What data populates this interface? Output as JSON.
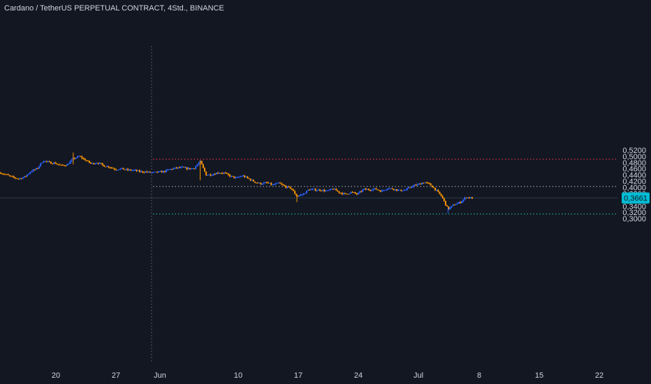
{
  "header": {
    "title": "Cardano / TetherUS PERPETUAL CONTRACT, 4Std., BINANCE"
  },
  "price_axis": {
    "ticks": [
      "0,5200",
      "0,5000",
      "0,4800",
      "0,4600",
      "0,4400",
      "0,4200",
      "0,4000",
      "0,3800",
      "0,3600",
      "0,3400",
      "0,3200",
      "0,3000"
    ],
    "current_price_label": "0,3661"
  },
  "time_axis": {
    "ticks": [
      "20",
      "27",
      "Jun",
      "10",
      "17",
      "24",
      "Jul",
      "8",
      "15",
      "22"
    ]
  },
  "colors": {
    "background": "#131722",
    "up_candle": "#2962ff",
    "down_candle": "#ff9800",
    "red_level": "#f23645",
    "grey_level": "#9598a1",
    "green_level": "#22ab94",
    "price_badge": "#00bcd4",
    "axis_text": "#d1d4dc"
  },
  "chart_data": {
    "type": "candlestick",
    "title": "Cardano / TetherUS PERPETUAL CONTRACT, 4Std., BINANCE",
    "y_range": [
      0.295,
      0.521
    ],
    "current_price": 0.3661,
    "horizontal_levels": [
      {
        "price": 0.4905,
        "style": "dotted",
        "color": "red"
      },
      {
        "price": 0.403,
        "style": "dotted",
        "color": "grey"
      },
      {
        "price": 0.315,
        "style": "dotted",
        "color": "green"
      }
    ],
    "vertical_marker": {
      "date": "Jun",
      "style": "dotted"
    },
    "close_path": [
      [
        0,
        0.447
      ],
      [
        1,
        0.44
      ],
      [
        2,
        0.432
      ],
      [
        3,
        0.428
      ],
      [
        4,
        0.434
      ],
      [
        5,
        0.452
      ],
      [
        6,
        0.46
      ],
      [
        7,
        0.486
      ],
      [
        8,
        0.48
      ],
      [
        9,
        0.478
      ],
      [
        10,
        0.47
      ],
      [
        11,
        0.473
      ],
      [
        12,
        0.492
      ],
      [
        13,
        0.5
      ],
      [
        14,
        0.488
      ],
      [
        15,
        0.476
      ],
      [
        16,
        0.48
      ],
      [
        17,
        0.47
      ],
      [
        18,
        0.466
      ],
      [
        19,
        0.458
      ],
      [
        20,
        0.46
      ],
      [
        21,
        0.456
      ],
      [
        22,
        0.455
      ],
      [
        23,
        0.451
      ],
      [
        24,
        0.45
      ],
      [
        25,
        0.447
      ],
      [
        26,
        0.449
      ],
      [
        27,
        0.451
      ],
      [
        28,
        0.458
      ],
      [
        29,
        0.462
      ],
      [
        30,
        0.464
      ],
      [
        31,
        0.46
      ],
      [
        32,
        0.462
      ],
      [
        33,
        0.483
      ],
      [
        34,
        0.44
      ],
      [
        35,
        0.442
      ],
      [
        36,
        0.448
      ],
      [
        37,
        0.446
      ],
      [
        38,
        0.436
      ],
      [
        39,
        0.43
      ],
      [
        40,
        0.438
      ],
      [
        41,
        0.428
      ],
      [
        42,
        0.418
      ],
      [
        43,
        0.412
      ],
      [
        44,
        0.415
      ],
      [
        45,
        0.408
      ],
      [
        46,
        0.414
      ],
      [
        47,
        0.403
      ],
      [
        48,
        0.398
      ],
      [
        49,
        0.372
      ],
      [
        50,
        0.378
      ],
      [
        51,
        0.394
      ],
      [
        52,
        0.392
      ],
      [
        53,
        0.392
      ],
      [
        54,
        0.388
      ],
      [
        55,
        0.396
      ],
      [
        56,
        0.384
      ],
      [
        57,
        0.378
      ],
      [
        58,
        0.385
      ],
      [
        59,
        0.378
      ],
      [
        60,
        0.394
      ],
      [
        61,
        0.393
      ],
      [
        62,
        0.395
      ],
      [
        63,
        0.388
      ],
      [
        64,
        0.398
      ],
      [
        65,
        0.395
      ],
      [
        66,
        0.39
      ],
      [
        67,
        0.392
      ],
      [
        68,
        0.404
      ],
      [
        69,
        0.409
      ],
      [
        70,
        0.417
      ],
      [
        71,
        0.41
      ],
      [
        72,
        0.392
      ],
      [
        73,
        0.37
      ],
      [
        74,
        0.33
      ],
      [
        75,
        0.345
      ],
      [
        76,
        0.352
      ],
      [
        77,
        0.369
      ],
      [
        78,
        0.366
      ]
    ],
    "path_x_range": [
      0,
      78
    ],
    "time_range": [
      "May 14",
      "Jul 6"
    ],
    "price_label_color": "#00bcd4"
  }
}
